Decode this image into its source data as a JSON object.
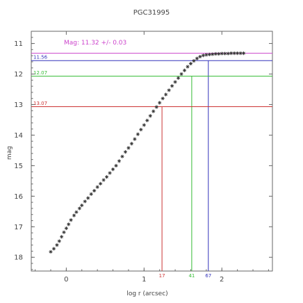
{
  "chart_data": {
    "type": "scatter",
    "title": "PGC31995",
    "xlabel": "log r (arcsec)",
    "ylabel": "mag",
    "xlim": [
      -0.45,
      2.65
    ],
    "ylim": [
      18.45,
      10.6
    ],
    "y_inverted": true,
    "grid": false,
    "x_ticks": [
      {
        "value": 0,
        "label": "0"
      },
      {
        "value": 1,
        "label": "1"
      },
      {
        "value": 2,
        "label": "2"
      }
    ],
    "y_ticks": [
      {
        "value": 11,
        "label": "11"
      },
      {
        "value": 12,
        "label": "12"
      },
      {
        "value": 13,
        "label": "13"
      },
      {
        "value": 14,
        "label": "14"
      },
      {
        "value": 15,
        "label": "15"
      },
      {
        "value": 16,
        "label": "16"
      },
      {
        "value": 17,
        "label": "17"
      },
      {
        "value": 18,
        "label": "18"
      }
    ],
    "annotation": {
      "text": "Mag: 11.32 +/- 0.03",
      "color": "#cc44cc"
    },
    "series": [
      {
        "marker": "star",
        "color": "#333333",
        "points": [
          {
            "x": -0.2,
            "y": 17.82
          },
          {
            "x": -0.16,
            "y": 17.72
          },
          {
            "x": -0.12,
            "y": 17.6
          },
          {
            "x": -0.09,
            "y": 17.47
          },
          {
            "x": -0.06,
            "y": 17.33
          },
          {
            "x": -0.03,
            "y": 17.18
          },
          {
            "x": 0.0,
            "y": 17.05
          },
          {
            "x": 0.03,
            "y": 16.92
          },
          {
            "x": 0.06,
            "y": 16.78
          },
          {
            "x": 0.1,
            "y": 16.63
          },
          {
            "x": 0.13,
            "y": 16.52
          },
          {
            "x": 0.17,
            "y": 16.4
          },
          {
            "x": 0.2,
            "y": 16.3
          },
          {
            "x": 0.24,
            "y": 16.17
          },
          {
            "x": 0.28,
            "y": 16.06
          },
          {
            "x": 0.32,
            "y": 15.93
          },
          {
            "x": 0.36,
            "y": 15.82
          },
          {
            "x": 0.4,
            "y": 15.7
          },
          {
            "x": 0.44,
            "y": 15.59
          },
          {
            "x": 0.48,
            "y": 15.47
          },
          {
            "x": 0.52,
            "y": 15.37
          },
          {
            "x": 0.56,
            "y": 15.24
          },
          {
            "x": 0.6,
            "y": 15.12
          },
          {
            "x": 0.64,
            "y": 15.0
          },
          {
            "x": 0.68,
            "y": 14.85
          },
          {
            "x": 0.72,
            "y": 14.7
          },
          {
            "x": 0.76,
            "y": 14.55
          },
          {
            "x": 0.8,
            "y": 14.42
          },
          {
            "x": 0.84,
            "y": 14.28
          },
          {
            "x": 0.88,
            "y": 14.13
          },
          {
            "x": 0.92,
            "y": 13.97
          },
          {
            "x": 0.96,
            "y": 13.82
          },
          {
            "x": 1.0,
            "y": 13.67
          },
          {
            "x": 1.04,
            "y": 13.52
          },
          {
            "x": 1.08,
            "y": 13.37
          },
          {
            "x": 1.12,
            "y": 13.22
          },
          {
            "x": 1.16,
            "y": 13.08
          },
          {
            "x": 1.2,
            "y": 12.94
          },
          {
            "x": 1.24,
            "y": 12.8
          },
          {
            "x": 1.28,
            "y": 12.67
          },
          {
            "x": 1.32,
            "y": 12.53
          },
          {
            "x": 1.36,
            "y": 12.39
          },
          {
            "x": 1.4,
            "y": 12.26
          },
          {
            "x": 1.44,
            "y": 12.13
          },
          {
            "x": 1.48,
            "y": 12.0
          },
          {
            "x": 1.52,
            "y": 11.88
          },
          {
            "x": 1.56,
            "y": 11.76
          },
          {
            "x": 1.6,
            "y": 11.66
          },
          {
            "x": 1.64,
            "y": 11.57
          },
          {
            "x": 1.68,
            "y": 11.49
          },
          {
            "x": 1.72,
            "y": 11.43
          },
          {
            "x": 1.76,
            "y": 11.39
          },
          {
            "x": 1.8,
            "y": 11.37
          },
          {
            "x": 1.84,
            "y": 11.36
          },
          {
            "x": 1.88,
            "y": 11.35
          },
          {
            "x": 1.92,
            "y": 11.34
          },
          {
            "x": 1.96,
            "y": 11.34
          },
          {
            "x": 2.0,
            "y": 11.33
          },
          {
            "x": 2.04,
            "y": 11.33
          },
          {
            "x": 2.08,
            "y": 11.33
          },
          {
            "x": 2.12,
            "y": 11.32
          },
          {
            "x": 2.16,
            "y": 11.32
          },
          {
            "x": 2.2,
            "y": 11.32
          },
          {
            "x": 2.24,
            "y": 11.32
          },
          {
            "x": 2.28,
            "y": 11.32
          }
        ]
      }
    ],
    "reference_lines": [
      {
        "mag": 11.32,
        "color": "#cc44cc"
      },
      {
        "mag": 11.56,
        "label": "11.56",
        "radius": 67,
        "color": "#3333bb"
      },
      {
        "mag": 12.07,
        "label": "12.07",
        "radius": 41,
        "color": "#33bb33"
      },
      {
        "mag": 13.07,
        "label": "13.07",
        "radius": 17,
        "color": "#cc3333"
      }
    ]
  }
}
